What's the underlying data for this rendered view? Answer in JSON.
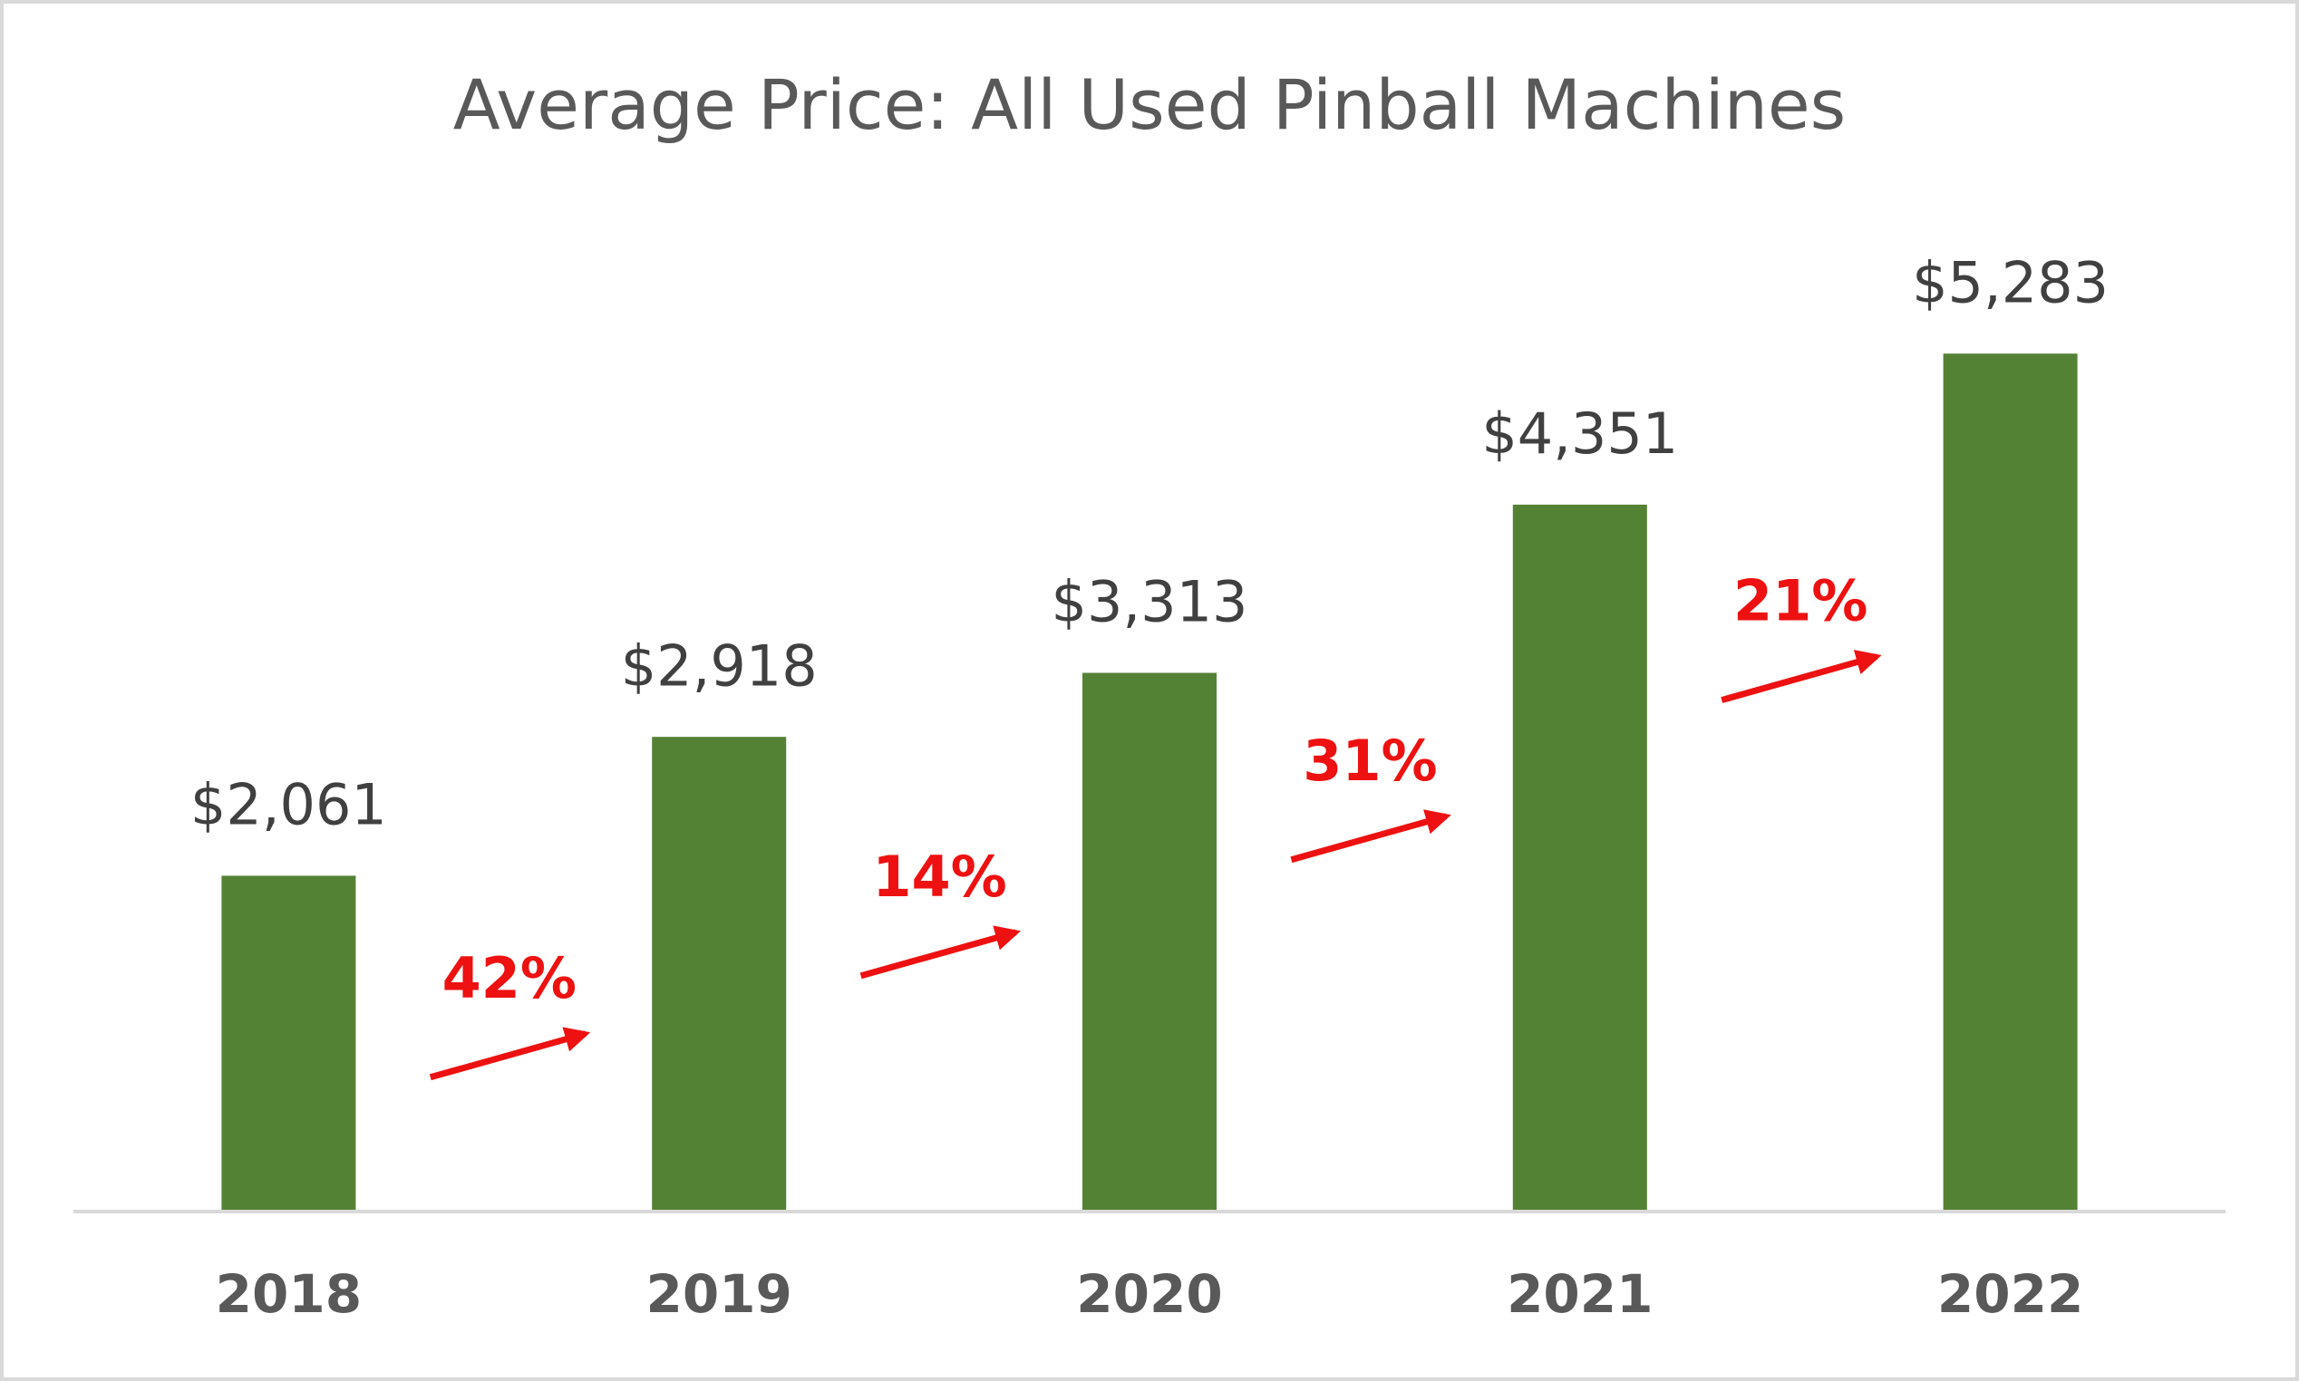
{
  "chart_data": {
    "type": "bar",
    "title": "Average Price: All Used Pinball Machines",
    "categories": [
      "2018",
      "2019",
      "2020",
      "2021",
      "2022"
    ],
    "values": [
      2061,
      2918,
      3313,
      4351,
      5283
    ],
    "value_labels": [
      "$2,061",
      "$2,918",
      "$3,313",
      "$4,351",
      "$5,283"
    ],
    "color": "#548235",
    "ylim": [
      0,
      6000
    ],
    "annotations": [
      "42%",
      "14%",
      "31%",
      "21%"
    ],
    "annotation_color": "#ee1111"
  }
}
